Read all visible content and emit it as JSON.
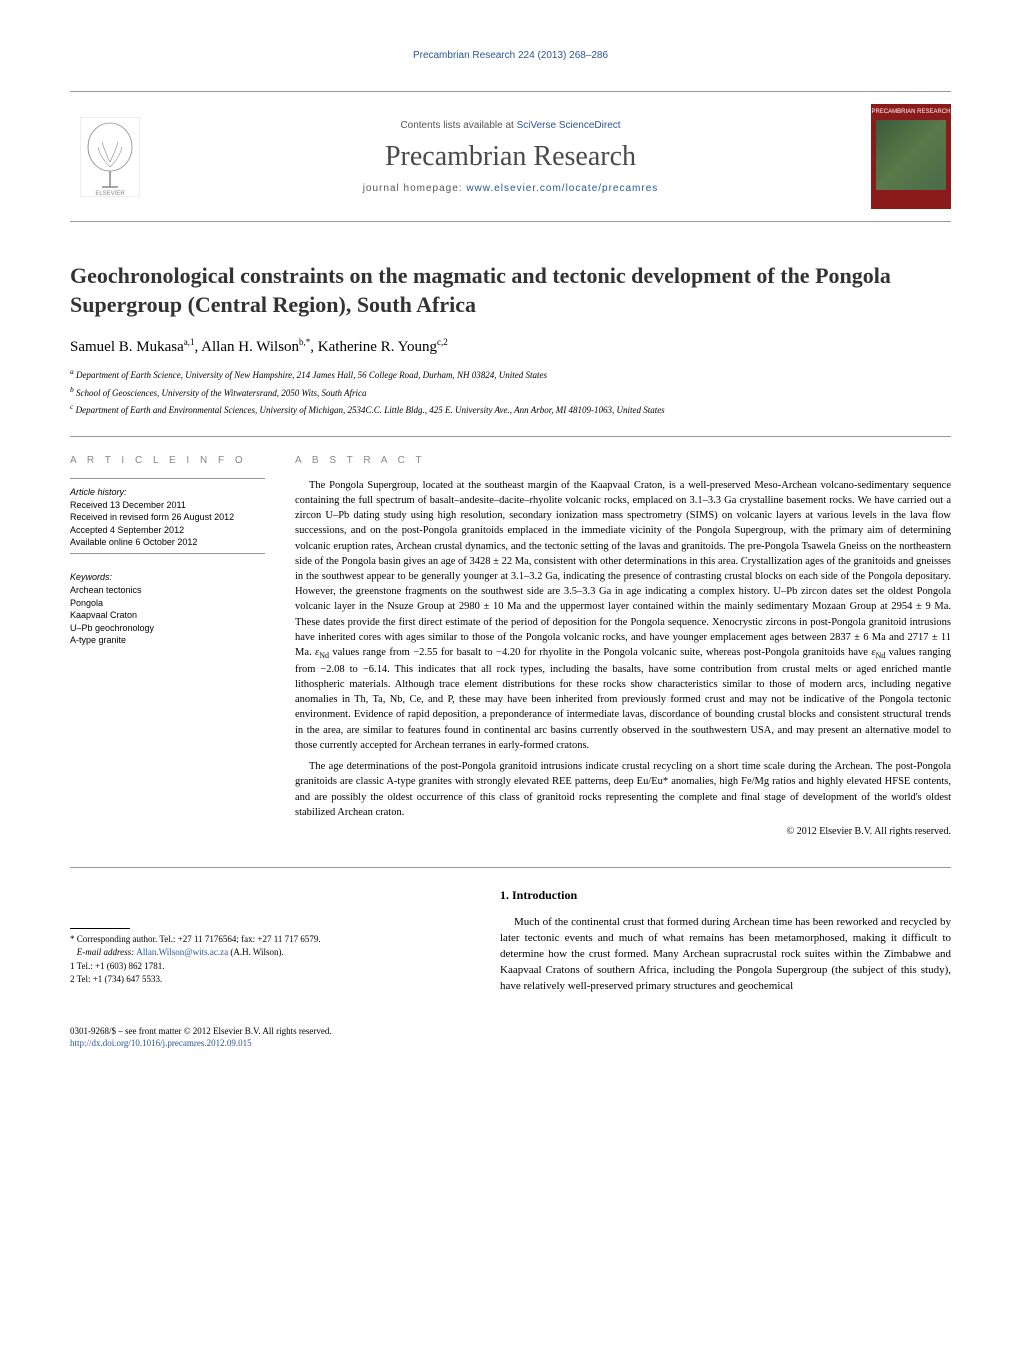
{
  "running_header": "Precambrian Research 224 (2013) 268–286",
  "masthead": {
    "contents_prefix": "Contents lists available at ",
    "contents_link": "SciVerse ScienceDirect",
    "journal_name": "Precambrian Research",
    "homepage_prefix": "journal homepage: ",
    "homepage_url": "www.elsevier.com/locate/precamres",
    "cover_label": "PRECAMBRIAN RESEARCH"
  },
  "article": {
    "title": "Geochronological constraints on the magmatic and tectonic development of the Pongola Supergroup (Central Region), South Africa",
    "authors_html": "Samuel B. Mukasa<sup>a,1</sup>, Allan H. Wilson<sup>b,*</sup>, Katherine R. Young<sup>c,2</sup>",
    "affiliations": [
      "a Department of Earth Science, University of New Hampshire, 214 James Hall, 56 College Road, Durham, NH 03824, United States",
      "b School of Geosciences, University of the Witwatersrand, 2050 Wits, South Africa",
      "c Department of Earth and Environmental Sciences, University of Michigan, 2534C.C. Little Bldg., 425 E. University Ave., Ann Arbor, MI 48109-1063, United States"
    ]
  },
  "article_info": {
    "heading": "A R T I C L E   I N F O",
    "history_label": "Article history:",
    "history": [
      "Received 13 December 2011",
      "Received in revised form 26 August 2012",
      "Accepted 4 September 2012",
      "Available online 6 October 2012"
    ],
    "keywords_label": "Keywords:",
    "keywords": [
      "Archean tectonics",
      "Pongola",
      "Kaapvaal Craton",
      "U–Pb geochronology",
      "A-type granite"
    ]
  },
  "abstract": {
    "heading": "A B S T R A C T",
    "paragraphs": [
      "The Pongola Supergroup, located at the southeast margin of the Kaapvaal Craton, is a well-preserved Meso-Archean volcano-sedimentary sequence containing the full spectrum of basalt–andesite–dacite–rhyolite volcanic rocks, emplaced on 3.1–3.3 Ga crystalline basement rocks. We have carried out a zircon U–Pb dating study using high resolution, secondary ionization mass spectrometry (SIMS) on volcanic layers at various levels in the lava flow successions, and on the post-Pongola granitoids emplaced in the immediate vicinity of the Pongola Supergroup, with the primary aim of determining volcanic eruption rates, Archean crustal dynamics, and the tectonic setting of the lavas and granitoids. The pre-Pongola Tsawela Gneiss on the northeastern side of the Pongola basin gives an age of 3428 ± 22 Ma, consistent with other determinations in this area. Crystallization ages of the granitoids and gneisses in the southwest appear to be generally younger at 3.1–3.2 Ga, indicating the presence of contrasting crustal blocks on each side of the Pongola depositary. However, the greenstone fragments on the southwest side are 3.5–3.3 Ga in age indicating a complex history. U–Pb zircon dates set the oldest Pongola volcanic layer in the Nsuze Group at 2980 ± 10 Ma and the uppermost layer contained within the mainly sedimentary Mozaan Group at 2954 ± 9 Ma. These dates provide the first direct estimate of the period of deposition for the Pongola sequence. Xenocrystic zircons in post-Pongola granitoid intrusions have inherited cores with ages similar to those of the Pongola volcanic rocks, and have younger emplacement ages between 2837 ± 6 Ma and 2717 ± 11 Ma. εNd values range from −2.55 for basalt to −4.20 for rhyolite in the Pongola volcanic suite, whereas post-Pongola granitoids have εNd values ranging from −2.08 to −6.14. This indicates that all rock types, including the basalts, have some contribution from crustal melts or aged enriched mantle lithospheric materials. Although trace element distributions for these rocks show characteristics similar to those of modern arcs, including negative anomalies in Th, Ta, Nb, Ce, and P, these may have been inherited from previously formed crust and may not be indicative of the Pongola tectonic environment. Evidence of rapid deposition, a preponderance of intermediate lavas, discordance of bounding crustal blocks and consistent structural trends in the area, are similar to features found in continental arc basins currently observed in the southwestern USA, and may present an alternative model to those currently accepted for Archean terranes in early-formed cratons.",
      "The age determinations of the post-Pongola granitoid intrusions indicate crustal recycling on a short time scale during the Archean. The post-Pongola granitoids are classic A-type granites with strongly elevated REE patterns, deep Eu/Eu* anomalies, high Fe/Mg ratios and highly elevated HFSE contents, and are possibly the oldest occurrence of this class of granitoid rocks representing the complete and final stage of development of the world's oldest stabilized Archean craton."
    ],
    "copyright": "© 2012 Elsevier B.V. All rights reserved."
  },
  "intro": {
    "heading": "1. Introduction",
    "text": "Much of the continental crust that formed during Archean time has been reworked and recycled by later tectonic events and much of what remains has been metamorphosed, making it difficult to determine how the crust formed. Many Archean supracrustal rock suites within the Zimbabwe and Kaapvaal Cratons of southern Africa, including the Pongola Supergroup (the subject of this study), have relatively well-preserved primary structures and geochemical"
  },
  "footnotes": {
    "corresponding": "* Corresponding author. Tel.: +27 11 7176564; fax: +27 11 717 6579.",
    "email_label": "E-mail address: ",
    "email": "Allan.Wilson@wits.ac.za",
    "email_suffix": " (A.H. Wilson).",
    "fn1": "1 Tel.: +1 (603) 862 1781.",
    "fn2": "2 Tel: +1 (734) 647 5533."
  },
  "footer": {
    "issn_line": "0301-9268/$ – see front matter © 2012 Elsevier B.V. All rights reserved.",
    "doi_url": "http://dx.doi.org/10.1016/j.precamres.2012.09.015"
  },
  "colors": {
    "link": "#2a5599",
    "cover_bg": "#8b1a1a",
    "heading_gray": "#888888",
    "rule": "#999999"
  }
}
